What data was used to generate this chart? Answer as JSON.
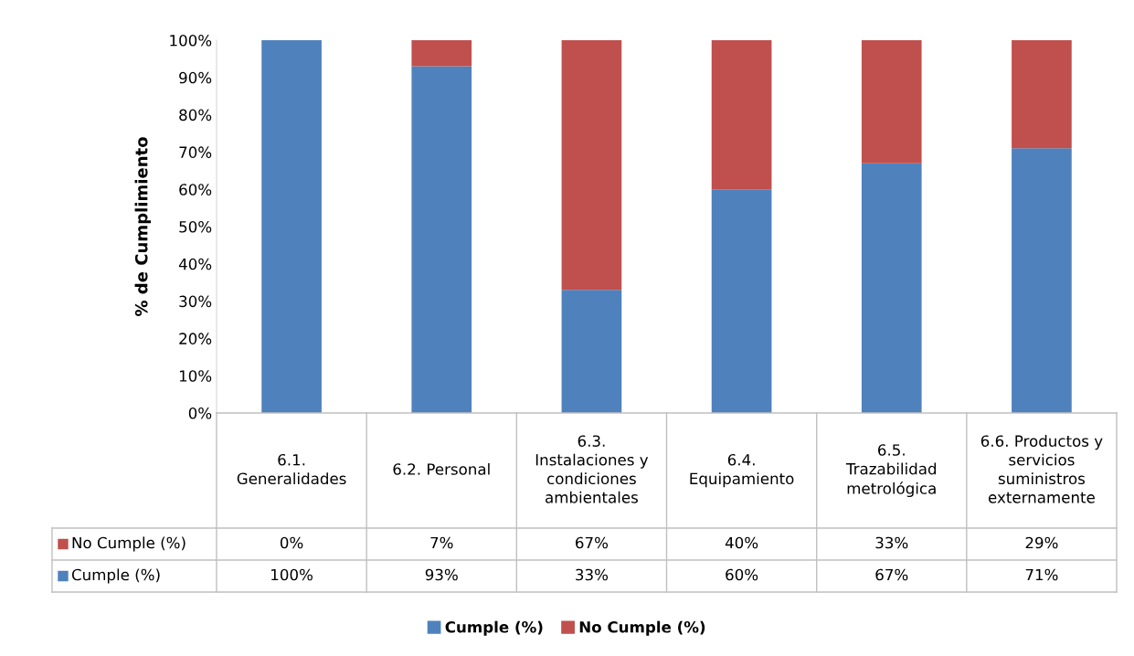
{
  "chart_data": {
    "type": "bar",
    "stacked": true,
    "ylabel": "% de Cumplimiento",
    "categories": [
      "6.1. Generalidades",
      "6.2. Personal",
      "6.3. Instalaciones y condiciones ambientales",
      "6.4. Equipamiento",
      "6.5. Trazabilidad metrológica",
      "6.6. Productos y servicios suministros externamente"
    ],
    "series": [
      {
        "name": "Cumple (%)",
        "color": "#4f81bd",
        "values": [
          100,
          93,
          33,
          60,
          67,
          71
        ],
        "value_labels": [
          "100%",
          "93%",
          "33%",
          "60%",
          "67%",
          "71%"
        ]
      },
      {
        "name": "No Cumple (%)",
        "color": "#c0504d",
        "values": [
          0,
          7,
          67,
          40,
          33,
          29
        ],
        "value_labels": [
          "0%",
          "7%",
          "67%",
          "40%",
          "33%",
          "29%"
        ]
      }
    ],
    "ylim": [
      0,
      100
    ],
    "yticks": [
      {
        "value": 0,
        "label": "0%"
      },
      {
        "value": 10,
        "label": "10%"
      },
      {
        "value": 20,
        "label": "20%"
      },
      {
        "value": 30,
        "label": "30%"
      },
      {
        "value": 40,
        "label": "40%"
      },
      {
        "value": 50,
        "label": "50%"
      },
      {
        "value": 60,
        "label": "60%"
      },
      {
        "value": 70,
        "label": "70%"
      },
      {
        "value": 80,
        "label": "80%"
      },
      {
        "value": 90,
        "label": "90%"
      },
      {
        "value": 100,
        "label": "100%"
      }
    ],
    "grid": false,
    "legend": "bottom"
  }
}
